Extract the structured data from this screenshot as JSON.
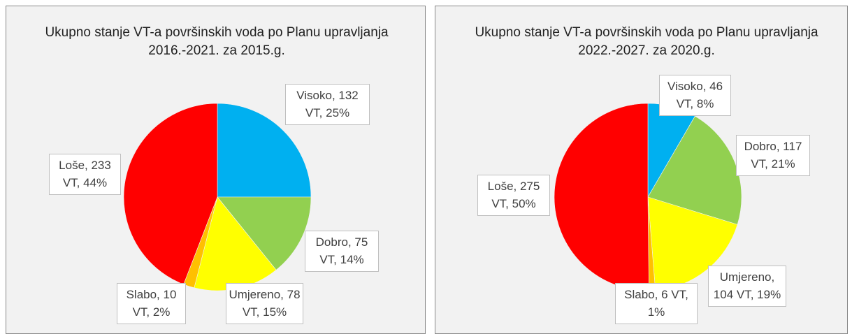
{
  "chart_data": [
    {
      "type": "pie",
      "title": "Ukupno stanje VT-a površinskih voda po Planu upravljanja 2016.-2021. za 2015.g.",
      "categories": [
        "Visoko",
        "Dobro",
        "Umjereno",
        "Slabo",
        "Loše"
      ],
      "values": [
        132,
        75,
        78,
        10,
        233
      ],
      "value_labels": [
        "Visoko, 132 VT, 25%",
        "Dobro, 75 VT, 14%",
        "Umjereno, 78 VT, 15%",
        "Slabo, 10 VT, 2%",
        "Loše, 233 VT, 44%"
      ],
      "colors": [
        "#00b0f0",
        "#92d050",
        "#ffff00",
        "#ffc000",
        "#ff0000"
      ]
    },
    {
      "type": "pie",
      "title": "Ukupno stanje VT-a površinskih voda po Planu upravljanja 2022.-2027. za 2020.g.",
      "categories": [
        "Visoko",
        "Dobro",
        "Umjereno",
        "Slabo",
        "Loše"
      ],
      "values": [
        46,
        117,
        104,
        6,
        275
      ],
      "value_labels": [
        "Visoko, 46 VT, 8%",
        "Dobro, 117 VT, 21%",
        "Umjereno, 104 VT, 19%",
        "Slabo, 6 VT, 1%",
        "Loše, 275 VT, 50%"
      ],
      "colors": [
        "#00b0f0",
        "#92d050",
        "#ffff00",
        "#ffc000",
        "#ff0000"
      ]
    }
  ]
}
